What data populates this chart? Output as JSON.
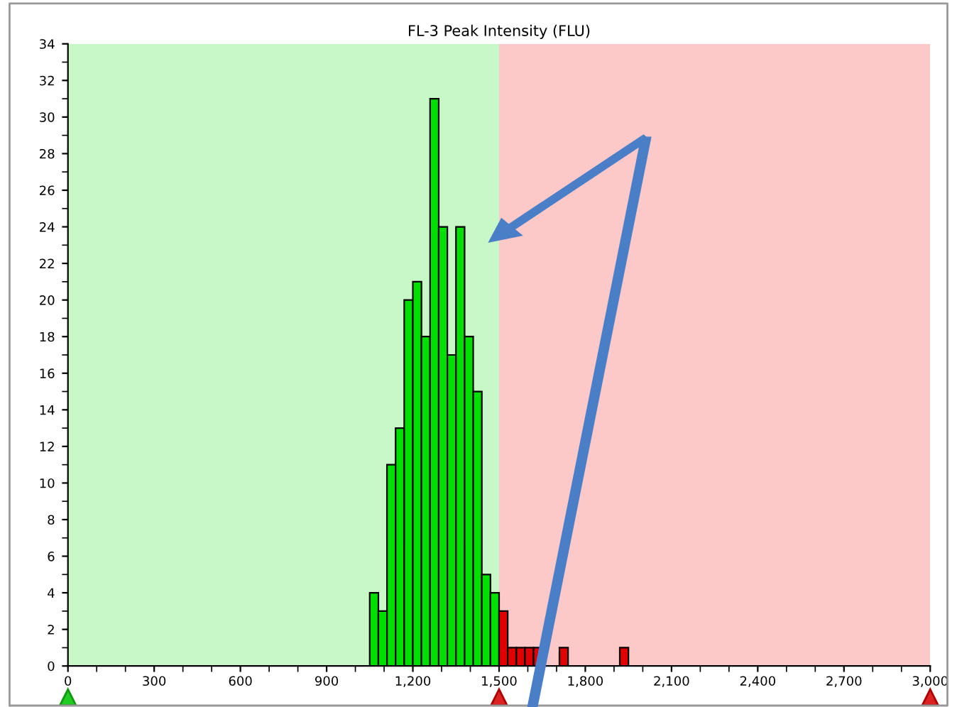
{
  "chart_data": {
    "type": "histogram",
    "title": "FL-3 Peak Intensity (FLU)",
    "bins": [
      1050,
      1080,
      1110,
      1140,
      1170,
      1200,
      1230,
      1260,
      1290,
      1320,
      1350,
      1380,
      1410,
      1440,
      1470,
      1500,
      1530,
      1560,
      1590,
      1620,
      1650,
      1680,
      1710,
      1740,
      1770,
      1800,
      1830,
      1860,
      1890,
      1920,
      1950
    ],
    "values": [
      4,
      3,
      11,
      13,
      20,
      21,
      18,
      31,
      24,
      17,
      24,
      18,
      15,
      5,
      4,
      3,
      1,
      1,
      1,
      1,
      0,
      0,
      1,
      0,
      0,
      0,
      0,
      0,
      0,
      1
    ],
    "colors": [
      "#00e000",
      "#00e000",
      "#00e000",
      "#00e000",
      "#00e000",
      "#00e000",
      "#00e000",
      "#00e000",
      "#00e000",
      "#00e000",
      "#00e000",
      "#00e000",
      "#00e000",
      "#00e000",
      "#00e000",
      "#e00000",
      "#e00000",
      "#e00000",
      "#e00000",
      "#e00000",
      "#e00000",
      "#e00000",
      "#e00000",
      "#e00000",
      "#e00000",
      "#e00000",
      "#e00000",
      "#e00000",
      "#e00000",
      "#e00000"
    ],
    "bands": [
      {
        "axis": "x",
        "from": 0,
        "to": 1500,
        "color": "#c8f8c8"
      },
      {
        "axis": "x",
        "from": 1500,
        "to": 3000,
        "color": "#fcc8c8"
      }
    ],
    "xlim": [
      0,
      3000
    ],
    "xticks": [
      0,
      {
        "value": 300,
        "label": "300"
      },
      {
        "value": 600,
        "label": "600"
      },
      {
        "value": 900,
        "label": "900"
      },
      {
        "value": 1200,
        "label": "1,200"
      },
      {
        "value": 1500,
        "label": "1,500"
      },
      {
        "value": 1800,
        "label": "1,800"
      },
      {
        "value": 2100,
        "label": "2,100"
      },
      {
        "value": 2400,
        "label": "2,400"
      },
      {
        "value": 2700,
        "label": "2,700"
      },
      {
        "value": 3000,
        "label": "3,000"
      }
    ],
    "ylim": [
      0,
      34
    ],
    "yticks": [
      0,
      2,
      4,
      6,
      8,
      10,
      12,
      14,
      16,
      18,
      20,
      22,
      24,
      26,
      28,
      30,
      32,
      34
    ],
    "grid": false
  }
}
